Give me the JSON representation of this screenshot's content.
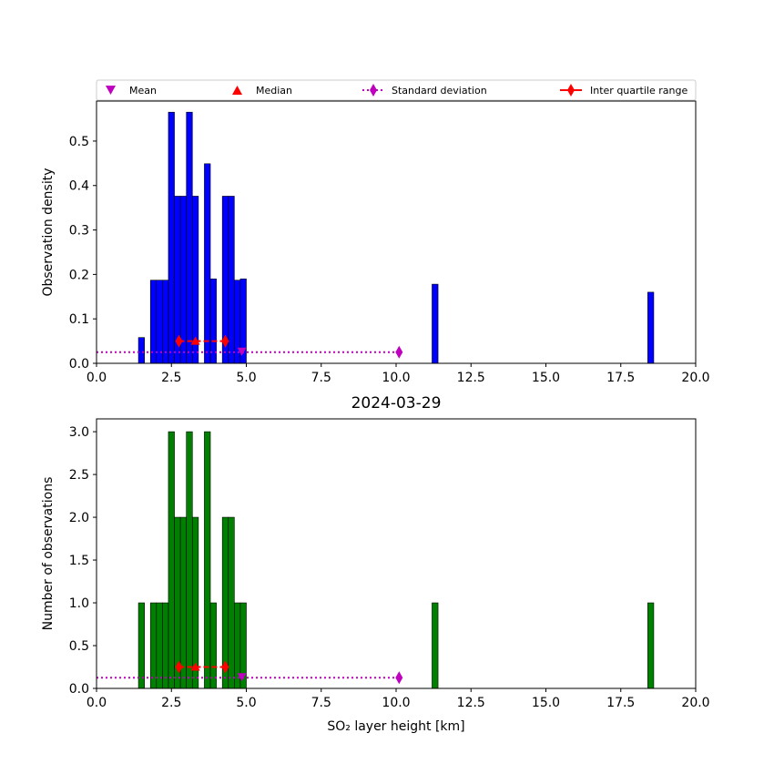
{
  "figure": {
    "legend": {
      "placement": "top",
      "entries": [
        {
          "label": "Mean",
          "marker": "triangle-down",
          "color": "#bf00bf"
        },
        {
          "label": "Median",
          "marker": "triangle-up",
          "color": "#ff0000"
        },
        {
          "label": "Standard deviation",
          "marker": "diamond",
          "line": "dotted",
          "color": "#bf00bf"
        },
        {
          "label": "Inter quartile range",
          "marker": "diamond",
          "line": "solid",
          "color": "#ff0000"
        }
      ]
    }
  },
  "chart_data": [
    {
      "type": "bar",
      "title": "",
      "xlabel": "",
      "ylabel": "Observation density",
      "xlim": [
        0,
        20
      ],
      "ylim": [
        0,
        0.59
      ],
      "xticks": [
        "0.0",
        "2.5",
        "5.0",
        "7.5",
        "10.0",
        "12.5",
        "15.0",
        "17.5",
        "20.0"
      ],
      "yticks": [
        "0.0",
        "0.1",
        "0.2",
        "0.3",
        "0.4",
        "0.5"
      ],
      "ytick_values": [
        0,
        0.1,
        0.2,
        0.3,
        0.4,
        0.5
      ],
      "bar_color": "#0000ff",
      "bin_width": 0.2,
      "bins": [
        {
          "x": 1.4,
          "value": 0.058
        },
        {
          "x": 1.8,
          "value": 0.187
        },
        {
          "x": 2.0,
          "value": 0.187
        },
        {
          "x": 2.2,
          "value": 0.187
        },
        {
          "x": 2.4,
          "value": 0.565
        },
        {
          "x": 2.6,
          "value": 0.376
        },
        {
          "x": 2.8,
          "value": 0.376
        },
        {
          "x": 3.0,
          "value": 0.565
        },
        {
          "x": 3.2,
          "value": 0.376
        },
        {
          "x": 3.6,
          "value": 0.449
        },
        {
          "x": 3.8,
          "value": 0.19
        },
        {
          "x": 4.2,
          "value": 0.376
        },
        {
          "x": 4.4,
          "value": 0.376
        },
        {
          "x": 4.6,
          "value": 0.187
        },
        {
          "x": 4.8,
          "value": 0.19
        },
        {
          "x": 11.2,
          "value": 0.178
        },
        {
          "x": 18.4,
          "value": 0.16
        }
      ],
      "stats": {
        "mean": {
          "x": 4.85,
          "y": 0.025
        },
        "median": {
          "x": 3.3,
          "y": 0.05
        },
        "std_line": {
          "x_start": 0,
          "x_end": 10.1,
          "y": 0.025
        },
        "iqr": {
          "x_start": 2.75,
          "x_end": 4.3,
          "y": 0.05
        }
      }
    },
    {
      "type": "bar",
      "title": "2024-03-29",
      "xlabel": "SO₂ layer height [km]",
      "ylabel": "Number of observations",
      "xlim": [
        0,
        20
      ],
      "ylim": [
        0,
        3.15
      ],
      "xticks": [
        "0.0",
        "2.5",
        "5.0",
        "7.5",
        "10.0",
        "12.5",
        "15.0",
        "17.5",
        "20.0"
      ],
      "yticks": [
        "0.0",
        "0.5",
        "1.0",
        "1.5",
        "2.0",
        "2.5",
        "3.0"
      ],
      "ytick_values": [
        0,
        0.5,
        1.0,
        1.5,
        2.0,
        2.5,
        3.0
      ],
      "bar_color": "#008000",
      "bin_width": 0.2,
      "bins": [
        {
          "x": 1.4,
          "value": 1
        },
        {
          "x": 1.8,
          "value": 1
        },
        {
          "x": 2.0,
          "value": 1
        },
        {
          "x": 2.2,
          "value": 1
        },
        {
          "x": 2.4,
          "value": 3
        },
        {
          "x": 2.6,
          "value": 2
        },
        {
          "x": 2.8,
          "value": 2
        },
        {
          "x": 3.0,
          "value": 3
        },
        {
          "x": 3.2,
          "value": 2
        },
        {
          "x": 3.6,
          "value": 3
        },
        {
          "x": 3.8,
          "value": 1
        },
        {
          "x": 4.2,
          "value": 2
        },
        {
          "x": 4.4,
          "value": 2
        },
        {
          "x": 4.6,
          "value": 1
        },
        {
          "x": 4.8,
          "value": 1
        },
        {
          "x": 11.2,
          "value": 1
        },
        {
          "x": 18.4,
          "value": 1
        }
      ],
      "stats": {
        "mean": {
          "x": 4.85,
          "y": 0.125
        },
        "median": {
          "x": 3.3,
          "y": 0.25
        },
        "std_line": {
          "x_start": 0,
          "x_end": 10.1,
          "y": 0.125
        },
        "iqr": {
          "x_start": 2.75,
          "x_end": 4.3,
          "y": 0.25
        }
      }
    }
  ]
}
